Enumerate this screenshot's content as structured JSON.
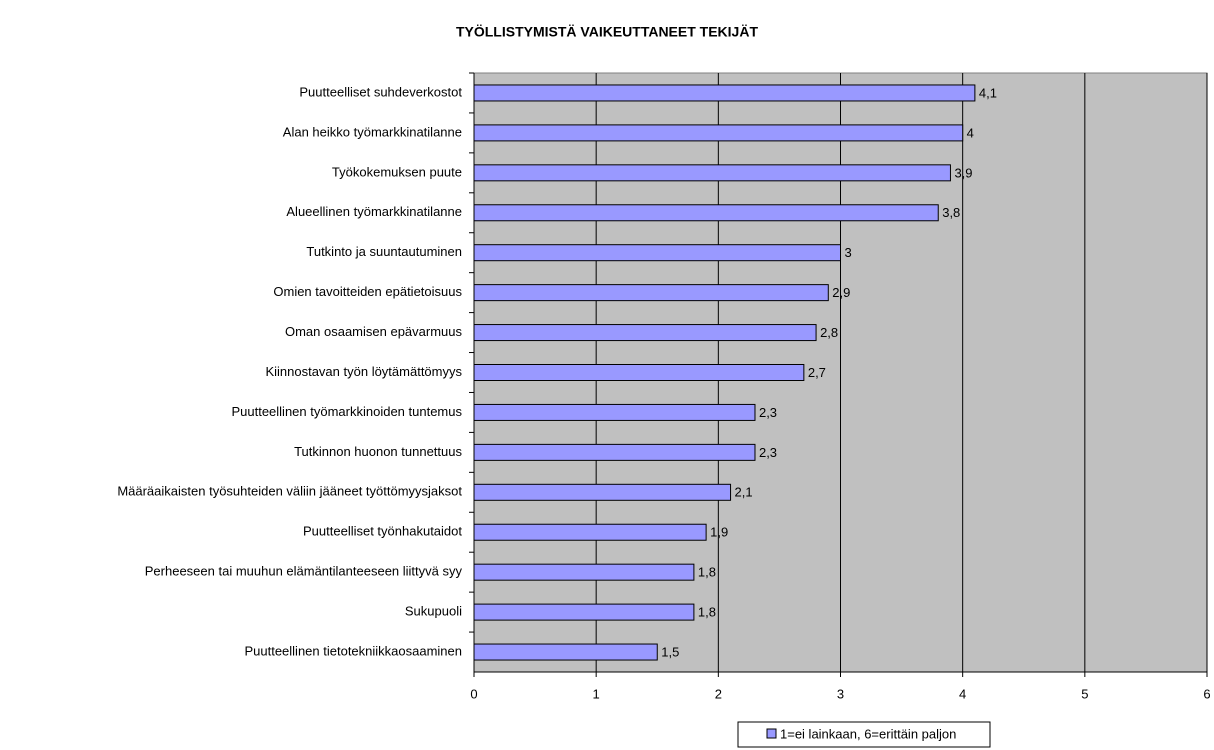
{
  "chart_data": {
    "type": "bar",
    "orientation": "horizontal",
    "title": "TYÖLLISTYMISTÄ VAIKEUTTANEET TEKIJÄT",
    "categories": [
      "Puutteelliset suhdeverkostot",
      "Alan heikko työmarkkinatilanne",
      "Työkokemuksen puute",
      "Alueellinen työmarkkinatilanne",
      "Tutkinto ja suuntautuminen",
      "Omien tavoitteiden epätietoisuus",
      "Oman osaamisen epävarmuus",
      "Kiinnostavan työn löytämättömyys",
      "Puutteellinen työmarkkinoiden tuntemus",
      "Tutkinnon huonon tunnettuus",
      "Määräaikaisten työsuhteiden väliin jääneet työttömyysjaksot",
      "Puutteelliset työnhakutaidot",
      "Perheeseen tai muuhun elämäntilanteeseen liittyvä syy",
      "Sukupuoli",
      "Puutteellinen tietotekniikkaosaaminen"
    ],
    "series": [
      {
        "name": "1=ei lainkaan, 6=erittäin paljon",
        "color": "#9999ff",
        "values": [
          4.1,
          4,
          3.9,
          3.8,
          3,
          2.9,
          2.8,
          2.7,
          2.3,
          2.3,
          2.1,
          1.9,
          1.8,
          1.8,
          1.5
        ],
        "value_labels": [
          "4,1",
          "4",
          "3,9",
          "3,8",
          "3",
          "2,9",
          "2,8",
          "2,7",
          "2,3",
          "2,3",
          "2,1",
          "1,9",
          "1,8",
          "1,8",
          "1,5"
        ]
      }
    ],
    "xlim": [
      0,
      6
    ],
    "xticks": [
      0,
      1,
      2,
      3,
      4,
      5,
      6
    ],
    "grid": true,
    "plot_background": "#c0c0c0",
    "legend": "bottom"
  }
}
